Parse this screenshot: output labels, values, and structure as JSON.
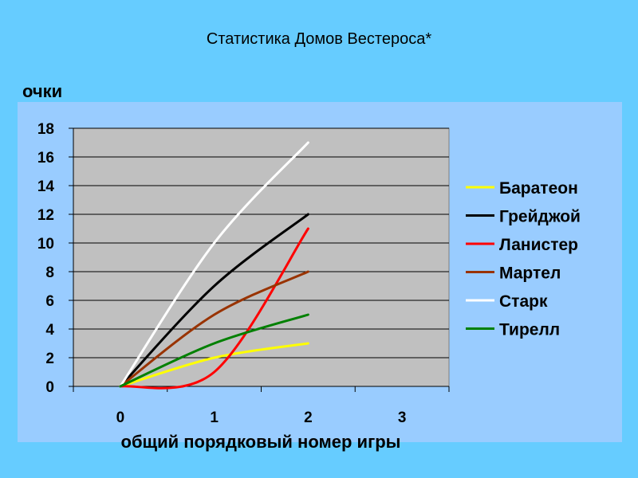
{
  "slide": {
    "title": "Статистика Домов Вестероса*"
  },
  "chart_data": {
    "type": "line",
    "title": "Статистика Домов Вестероса*",
    "xlabel": "общий порядковый номер игры",
    "ylabel": "очки",
    "x": [
      0,
      1,
      2
    ],
    "xticks": [
      0,
      1,
      2,
      3
    ],
    "xlim": [
      -0.5,
      3.5
    ],
    "ylim": [
      0,
      18
    ],
    "yticks": [
      0,
      2,
      4,
      6,
      8,
      10,
      12,
      14,
      16,
      18
    ],
    "grid": "horizontal",
    "legend_position": "right",
    "plot_background": "#c0c0c0",
    "chart_area_background": "#99ccff",
    "series": [
      {
        "name": "Баратеон",
        "color": "#ffff00",
        "values": [
          0,
          2,
          3
        ]
      },
      {
        "name": "Грейджой",
        "color": "#000000",
        "values": [
          0,
          7,
          12
        ]
      },
      {
        "name": "Ланистер",
        "color": "#ff0000",
        "values": [
          0,
          1,
          11
        ]
      },
      {
        "name": "Мартел",
        "color": "#993300",
        "values": [
          0,
          5,
          8
        ]
      },
      {
        "name": "Старк",
        "color": "#ffffff",
        "values": [
          0,
          10,
          17
        ]
      },
      {
        "name": "Тирелл",
        "color": "#008000",
        "values": [
          0,
          3,
          5
        ]
      }
    ]
  }
}
